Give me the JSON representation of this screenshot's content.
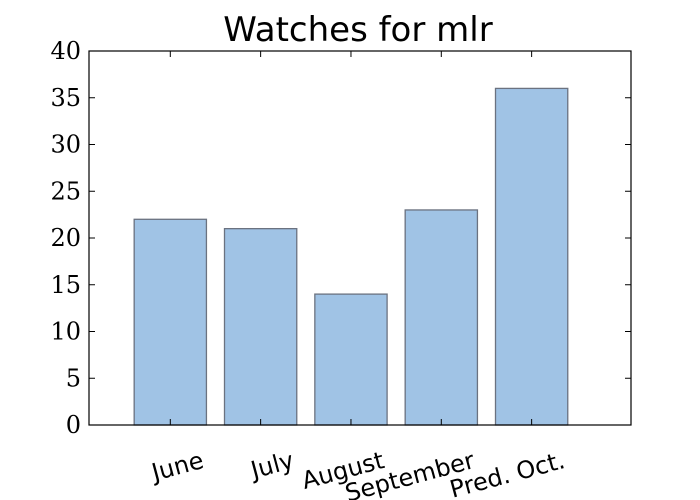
{
  "chart_data": {
    "type": "bar",
    "title": "Watches for mlr",
    "xlabel": "",
    "ylabel": "",
    "categories": [
      "June",
      "July",
      "August",
      "September",
      "Pred. Oct."
    ],
    "values": [
      22,
      21,
      14,
      23,
      36
    ],
    "ylim": [
      0,
      40
    ],
    "yticks": [
      0,
      5,
      10,
      15,
      20,
      25,
      30,
      35,
      40
    ],
    "grid": false,
    "legend": "none",
    "colors": {
      "bar_fill": "#a0c3e5",
      "bar_edge": "#6b7280",
      "axis": "#000000"
    }
  }
}
